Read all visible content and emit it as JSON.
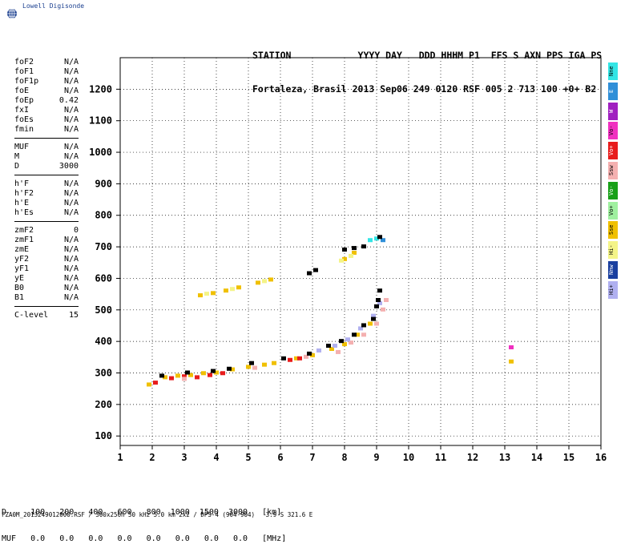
{
  "logo": {
    "text": "Lowell Digisonde",
    "icon": "globe-icon"
  },
  "header": {
    "line1": "STATION            YYYY DAY   DDD HHHM P1  FFS S AXN PPS IGA PS",
    "line2": "Fortaleza, Brasil 2013 Sep06 249 0120 RSF 005 2 713 100 +0+ B2"
  },
  "params": {
    "group1": [
      {
        "name": "foF2",
        "value": "N/A"
      },
      {
        "name": "foF1",
        "value": "N/A"
      },
      {
        "name": "foF1p",
        "value": "N/A"
      },
      {
        "name": "foE",
        "value": "N/A"
      },
      {
        "name": "foEp",
        "value": "0.42"
      },
      {
        "name": "fxI",
        "value": "N/A"
      },
      {
        "name": "foEs",
        "value": "N/A"
      },
      {
        "name": "fmin",
        "value": "N/A"
      }
    ],
    "group2": [
      {
        "name": "MUF",
        "value": "N/A"
      },
      {
        "name": "M",
        "value": "N/A"
      },
      {
        "name": "D",
        "value": "3000"
      }
    ],
    "group3": [
      {
        "name": "h'F",
        "value": "N/A"
      },
      {
        "name": "h'F2",
        "value": "N/A"
      },
      {
        "name": "h'E",
        "value": "N/A"
      },
      {
        "name": "h'Es",
        "value": "N/A"
      }
    ],
    "group4": [
      {
        "name": "zmF2",
        "value": "0"
      },
      {
        "name": "zmF1",
        "value": "N/A"
      },
      {
        "name": "zmE",
        "value": "N/A"
      },
      {
        "name": "yF2",
        "value": "N/A"
      },
      {
        "name": "yF1",
        "value": "N/A"
      },
      {
        "name": "yE",
        "value": "N/A"
      },
      {
        "name": "B0",
        "value": "N/A"
      },
      {
        "name": "B1",
        "value": "N/A"
      }
    ],
    "clevel": {
      "name": "C-level",
      "value": "15"
    }
  },
  "legend": [
    {
      "label": "Nne",
      "color": "#33e5e5"
    },
    {
      "label": "E",
      "color": "#2f8fd8"
    },
    {
      "label": "W",
      "color": "#a020c0"
    },
    {
      "label": "Vo-",
      "color": "#f030c0"
    },
    {
      "label": "Vo+",
      "color": "#e81c1c"
    },
    {
      "label": "Ssw",
      "color": "#f4b0b0"
    },
    {
      "label": "Vo-",
      "color": "#18a018"
    },
    {
      "label": "Vo+",
      "color": "#a0f0a0"
    },
    {
      "label": "Sse",
      "color": "#f0c000"
    },
    {
      "label": "Hi-",
      "color": "#f4f488"
    },
    {
      "label": "Nnw",
      "color": "#1a3f9f"
    },
    {
      "label": "Hi+",
      "color": "#b0b0f0"
    }
  ],
  "bottom": {
    "d_row": "D     100   200   400   600   800  1000  1500  3000   [km]",
    "muf_row": "MUF   0.0   0.0   0.0   0.0   0.0   0.0   0.0   0.0   [MHz]"
  },
  "footer": "FZA0M_2013249012000.RSF / 300x256h 50 kHz 5.0 km 2x2 / DPS-4 (904-904)   3.9 S 321.6 E",
  "chart_data": {
    "type": "scatter",
    "title": "",
    "xlabel": "",
    "ylabel": "",
    "xlim": [
      1,
      16
    ],
    "ylim": [
      70,
      1300
    ],
    "x_ticks": [
      1,
      2,
      3,
      4,
      5,
      6,
      7,
      8,
      9,
      10,
      11,
      12,
      13,
      14,
      15,
      16
    ],
    "y_ticks": [
      100,
      200,
      300,
      400,
      500,
      600,
      700,
      800,
      900,
      1000,
      1100,
      1200
    ],
    "grid": true,
    "series": [
      {
        "name": "Sse",
        "color": "#f0c000",
        "points": [
          [
            1.9,
            262
          ],
          [
            2.4,
            285
          ],
          [
            2.8,
            290
          ],
          [
            3.2,
            292
          ],
          [
            3.6,
            298
          ],
          [
            4.0,
            300
          ],
          [
            4.5,
            310
          ],
          [
            5.0,
            318
          ],
          [
            5.5,
            325
          ],
          [
            5.8,
            330
          ],
          [
            6.5,
            345
          ],
          [
            7.0,
            355
          ],
          [
            7.6,
            375
          ],
          [
            8.0,
            390
          ],
          [
            8.4,
            420
          ],
          [
            8.8,
            455
          ],
          [
            3.5,
            545
          ],
          [
            3.9,
            552
          ],
          [
            4.3,
            560
          ],
          [
            4.7,
            570
          ],
          [
            5.3,
            585
          ],
          [
            5.7,
            595
          ],
          [
            8.0,
            660
          ],
          [
            8.3,
            680
          ],
          [
            13.2,
            335
          ]
        ]
      },
      {
        "name": "Vo+",
        "color": "#e81c1c",
        "points": [
          [
            2.1,
            268
          ],
          [
            2.6,
            282
          ],
          [
            3.0,
            288
          ],
          [
            3.4,
            285
          ],
          [
            3.8,
            292
          ],
          [
            4.2,
            298
          ],
          [
            6.3,
            340
          ],
          [
            6.6,
            345
          ]
        ]
      },
      {
        "name": "Ssw",
        "color": "#f4b0b0",
        "points": [
          [
            3.0,
            280
          ],
          [
            5.2,
            315
          ],
          [
            6.8,
            350
          ],
          [
            7.8,
            365
          ],
          [
            8.2,
            395
          ],
          [
            8.6,
            420
          ],
          [
            9.0,
            455
          ],
          [
            9.2,
            500
          ],
          [
            9.3,
            530
          ]
        ]
      },
      {
        "name": "Hi+",
        "color": "#b0b0f0",
        "points": [
          [
            7.2,
            370
          ],
          [
            7.7,
            385
          ],
          [
            8.1,
            405
          ],
          [
            8.5,
            440
          ],
          [
            8.9,
            480
          ],
          [
            9.1,
            520
          ]
        ]
      },
      {
        "name": "Hi-",
        "color": "#f4f488",
        "points": [
          [
            3.7,
            550
          ],
          [
            4.5,
            565
          ],
          [
            5.5,
            590
          ],
          [
            8.2,
            670
          ],
          [
            7.9,
            655
          ]
        ]
      },
      {
        "name": "Nne",
        "color": "#33e5e5",
        "points": [
          [
            8.8,
            720
          ],
          [
            9.0,
            725
          ]
        ]
      },
      {
        "name": "E",
        "color": "#2f8fd8",
        "points": [
          [
            9.2,
            720
          ]
        ]
      },
      {
        "name": "Vo-",
        "color": "#f030c0",
        "points": [
          [
            13.2,
            380
          ]
        ]
      },
      {
        "name": "",
        "color": "#000000",
        "points": [
          [
            2.3,
            290
          ],
          [
            3.1,
            300
          ],
          [
            3.9,
            305
          ],
          [
            4.4,
            312
          ],
          [
            5.1,
            330
          ],
          [
            6.1,
            345
          ],
          [
            6.9,
            360
          ],
          [
            7.5,
            385
          ],
          [
            7.9,
            400
          ],
          [
            8.3,
            420
          ],
          [
            8.6,
            450
          ],
          [
            8.9,
            470
          ],
          [
            9.0,
            510
          ],
          [
            9.05,
            530
          ],
          [
            9.1,
            560
          ],
          [
            6.9,
            615
          ],
          [
            7.1,
            625
          ],
          [
            8.0,
            690
          ],
          [
            8.3,
            695
          ],
          [
            8.6,
            700
          ],
          [
            9.1,
            730
          ]
        ]
      }
    ]
  }
}
